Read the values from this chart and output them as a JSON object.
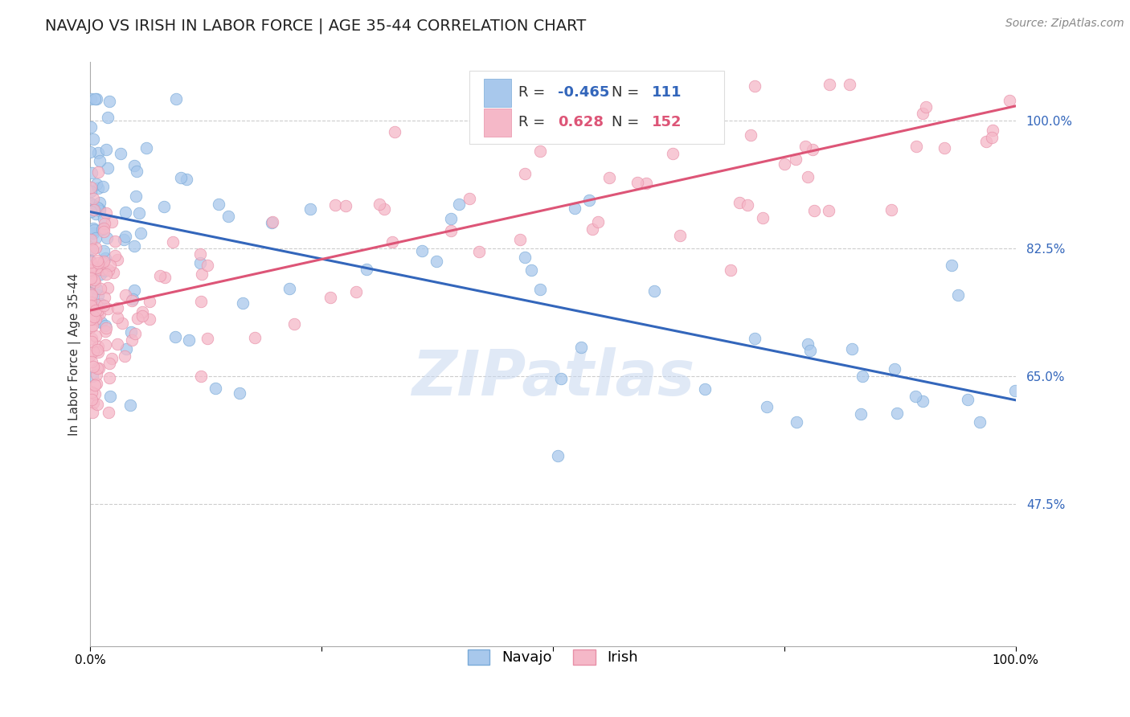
{
  "title": "NAVAJO VS IRISH IN LABOR FORCE | AGE 35-44 CORRELATION CHART",
  "source": "Source: ZipAtlas.com",
  "ylabel": "In Labor Force | Age 35-44",
  "xlim": [
    0.0,
    1.0
  ],
  "ylim": [
    0.28,
    1.08
  ],
  "yticks": [
    0.475,
    0.65,
    0.825,
    1.0
  ],
  "ytick_labels": [
    "47.5%",
    "65.0%",
    "82.5%",
    "100.0%"
  ],
  "navajo_color": "#A8C8EC",
  "navajo_edge_color": "#7AAAD8",
  "irish_color": "#F5B8C8",
  "irish_edge_color": "#E890A8",
  "navajo_line_color": "#3366BB",
  "irish_line_color": "#DD5577",
  "navajo_R": -0.465,
  "navajo_N": 111,
  "irish_R": 0.628,
  "irish_N": 152,
  "navajo_line_start_x": 0.0,
  "navajo_line_start_y": 0.875,
  "navajo_line_end_x": 1.0,
  "navajo_line_end_y": 0.617,
  "irish_line_start_x": 0.0,
  "irish_line_start_y": 0.74,
  "irish_line_end_x": 1.0,
  "irish_line_end_y": 1.02,
  "watermark": "ZIPatlas",
  "watermark_color": "#C8D8F0",
  "background_color": "#FFFFFF",
  "grid_color": "#CCCCCC",
  "title_fontsize": 14,
  "axis_label_fontsize": 11,
  "tick_label_fontsize": 11,
  "legend_fontsize": 13,
  "source_fontsize": 10
}
